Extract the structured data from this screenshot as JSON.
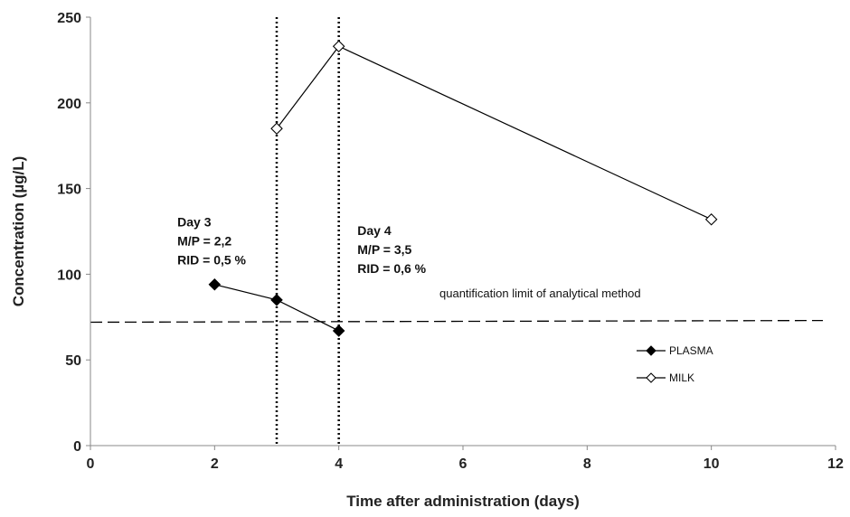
{
  "chart_data": {
    "type": "line",
    "xlabel": "Time after administration (days)",
    "ylabel": "Concentration (µg/L)",
    "xlim": [
      0,
      12
    ],
    "ylim": [
      0,
      250
    ],
    "xticks": [
      0,
      2,
      4,
      6,
      8,
      10,
      12
    ],
    "yticks": [
      0,
      50,
      100,
      150,
      200,
      250
    ],
    "grid": false,
    "legend_position": "right",
    "series": [
      {
        "name": "PLASMA",
        "marker": "filled-diamond",
        "color": "#000000",
        "x": [
          2,
          3,
          4
        ],
        "y": [
          94,
          85,
          67
        ]
      },
      {
        "name": "MILK",
        "marker": "open-diamond",
        "color": "#000000",
        "x": [
          3,
          4,
          10
        ],
        "y": [
          185,
          233,
          132
        ]
      }
    ],
    "reference_lines": {
      "vertical": [
        3,
        4
      ],
      "horizontal": {
        "y": [
          72,
          73
        ],
        "label": "quantification limit of  analytical method"
      }
    },
    "annotations": [
      {
        "x": 1.4,
        "y": 128,
        "lines": [
          "Day 3",
          "M/P = 2,2",
          "RID = 0,5 %"
        ]
      },
      {
        "x": 4.3,
        "y": 123,
        "lines": [
          "Day 4",
          "M/P = 3,5",
          "RID = 0,6 %"
        ]
      }
    ]
  }
}
